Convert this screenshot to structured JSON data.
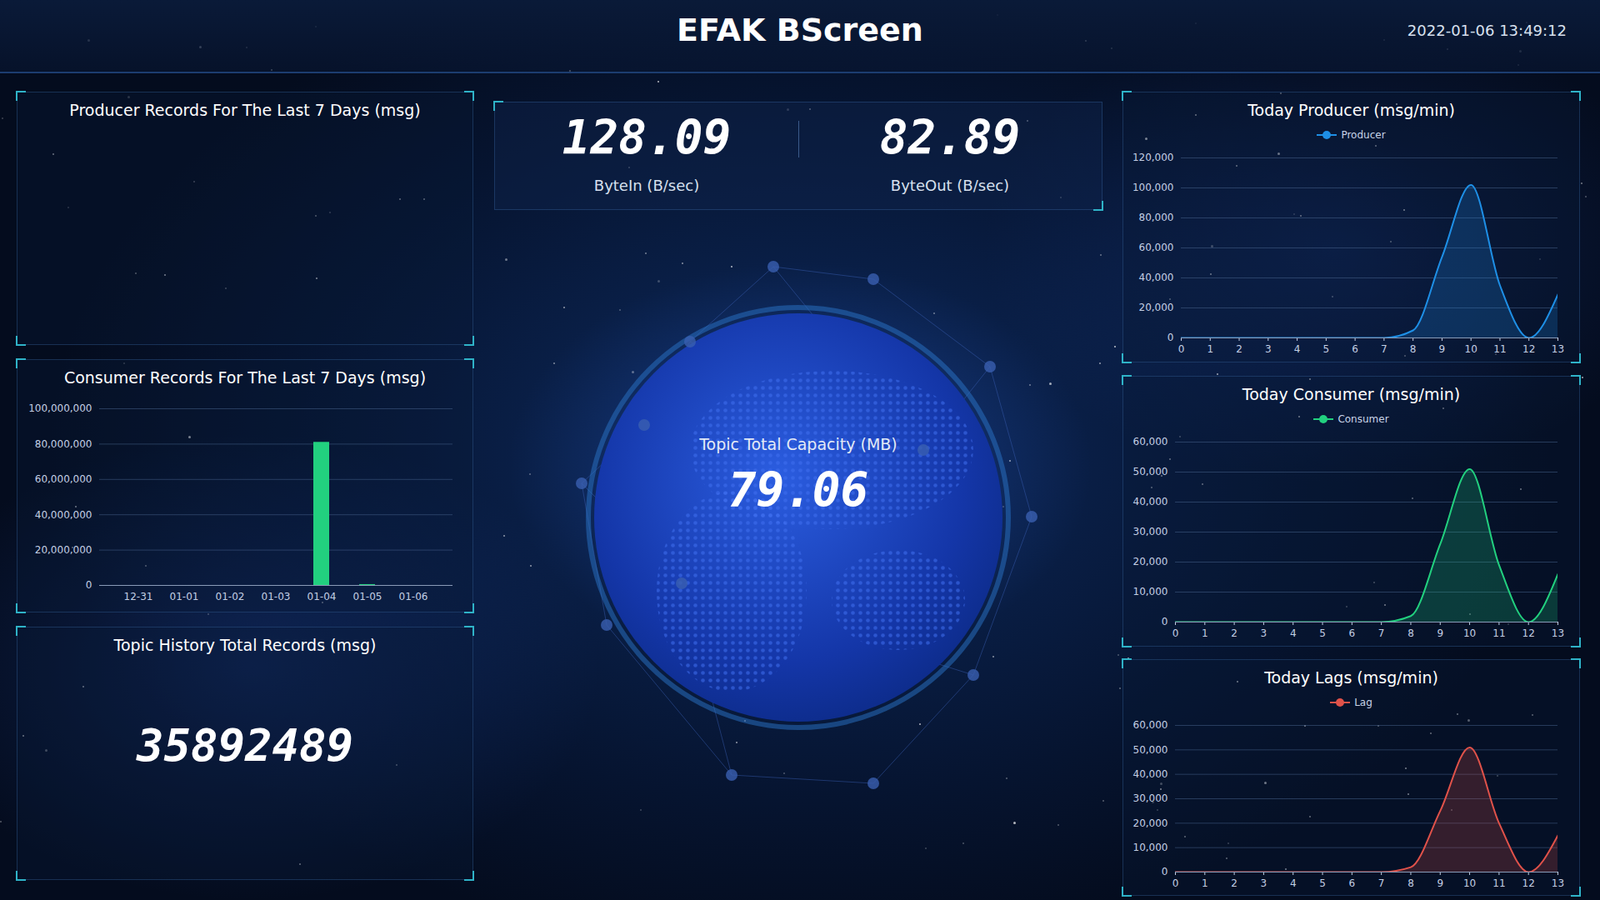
{
  "header": {
    "title": "EFAK BScreen",
    "datetime": "2022-01-06 13:49:12"
  },
  "metrics": [
    {
      "label": "ByteIn (B/sec)",
      "value": 128.09
    },
    {
      "label": "ByteOut (B/sec)",
      "value": 82.89
    }
  ],
  "capacity": {
    "label": "Topic Total Capacity (MB)",
    "value": 79.06
  },
  "history": {
    "label": "Topic History Total Records (msg)",
    "value": 35892489
  },
  "chart_data": [
    {
      "type": "bar",
      "title": "Producer Records For The Last 7 Days (msg)"
    },
    {
      "type": "bar",
      "title": "Consumer Records For The Last 7 Days (msg)",
      "categories": [
        "12-31",
        "01-01",
        "01-02",
        "01-03",
        "01-04",
        "01-05",
        "01-06"
      ],
      "values": [
        0,
        0,
        0,
        0,
        81000000,
        500000,
        0
      ],
      "color": "#22d07f",
      "ylim": [
        0,
        100000000
      ],
      "yticks": [
        0,
        {
          "value": 20000000,
          "label": "20,000,000"
        },
        {
          "value": 40000000,
          "label": "40,000,000"
        },
        {
          "value": 60000000,
          "label": "60,000,000"
        },
        {
          "value": 80000000,
          "label": "80,000,000"
        },
        {
          "value": 100000000,
          "label": "100,000,000"
        }
      ],
      "grid": true
    },
    {
      "type": "area",
      "title": "Today Producer (msg/min)",
      "x": [
        0,
        1,
        2,
        3,
        4,
        5,
        6,
        7,
        8,
        9,
        10,
        11,
        12,
        13
      ],
      "series": [
        {
          "name": "Producer",
          "color": "#1e8fe6",
          "values": [
            0,
            0,
            0,
            0,
            0,
            0,
            0,
            0,
            5000,
            54000,
            102000,
            35000,
            0,
            29000
          ]
        }
      ],
      "xlim": [
        0,
        13
      ],
      "xticks": [
        0,
        1,
        2,
        3,
        4,
        5,
        6,
        7,
        8,
        9,
        10,
        11,
        12,
        13
      ],
      "ylim": [
        0,
        120000
      ],
      "yticks": [
        0,
        {
          "value": 20000,
          "label": "20,000"
        },
        {
          "value": 40000,
          "label": "40,000"
        },
        {
          "value": 60000,
          "label": "60,000"
        },
        {
          "value": 80000,
          "label": "80,000"
        },
        {
          "value": 100000,
          "label": "100,000"
        },
        {
          "value": 120000,
          "label": "120,000"
        }
      ],
      "grid": true,
      "legend": "top"
    },
    {
      "type": "area",
      "title": "Today Consumer (msg/min)",
      "x": [
        0,
        1,
        2,
        3,
        4,
        5,
        6,
        7,
        8,
        9,
        10,
        11,
        12,
        13
      ],
      "series": [
        {
          "name": "Consumer",
          "color": "#22d07f",
          "values": [
            0,
            0,
            0,
            0,
            0,
            0,
            0,
            0,
            2000,
            26000,
            51000,
            19000,
            0,
            16000
          ]
        }
      ],
      "xlim": [
        0,
        13
      ],
      "xticks": [
        0,
        1,
        2,
        3,
        4,
        5,
        6,
        7,
        8,
        9,
        10,
        11,
        12,
        13
      ],
      "ylim": [
        0,
        60000
      ],
      "yticks": [
        0,
        {
          "value": 10000,
          "label": "10,000"
        },
        {
          "value": 20000,
          "label": "20,000"
        },
        {
          "value": 30000,
          "label": "30,000"
        },
        {
          "value": 40000,
          "label": "40,000"
        },
        {
          "value": 50000,
          "label": "50,000"
        },
        {
          "value": 60000,
          "label": "60,000"
        }
      ],
      "grid": true,
      "legend": "top"
    },
    {
      "type": "area",
      "title": "Today Lags (msg/min)",
      "x": [
        0,
        1,
        2,
        3,
        4,
        5,
        6,
        7,
        8,
        9,
        10,
        11,
        12,
        13
      ],
      "series": [
        {
          "name": "Lag",
          "color": "#e0524a",
          "values": [
            0,
            0,
            0,
            0,
            0,
            0,
            0,
            0,
            2000,
            25000,
            51000,
            20000,
            0,
            15000
          ]
        }
      ],
      "xlim": [
        0,
        13
      ],
      "xticks": [
        0,
        1,
        2,
        3,
        4,
        5,
        6,
        7,
        8,
        9,
        10,
        11,
        12,
        13
      ],
      "ylim": [
        0,
        60000
      ],
      "yticks": [
        0,
        {
          "value": 10000,
          "label": "10,000"
        },
        {
          "value": 20000,
          "label": "20,000"
        },
        {
          "value": 30000,
          "label": "30,000"
        },
        {
          "value": 40000,
          "label": "40,000"
        },
        {
          "value": 50000,
          "label": "50,000"
        },
        {
          "value": 60000,
          "label": "60,000"
        }
      ],
      "grid": true,
      "legend": "top"
    }
  ]
}
